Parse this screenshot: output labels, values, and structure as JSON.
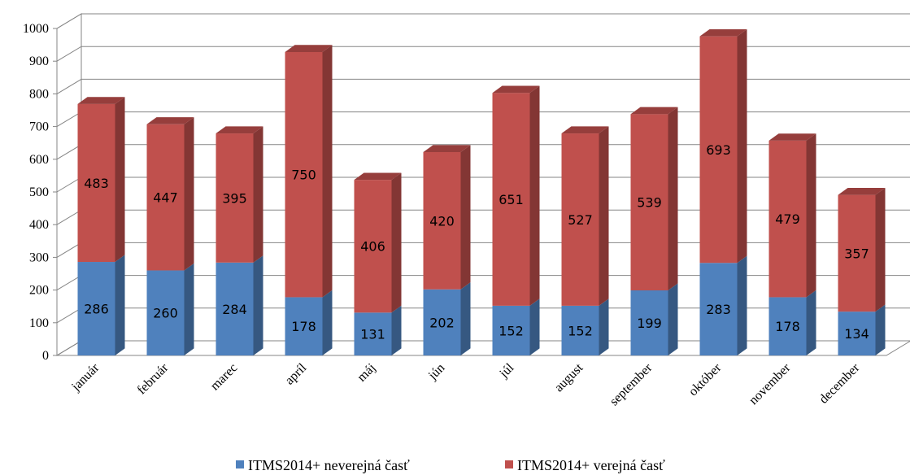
{
  "chart_data": {
    "type": "bar",
    "stacked": true,
    "categories": [
      "január",
      "február",
      "marec",
      "apríl",
      "máj",
      "jún",
      "júl",
      "august",
      "september",
      "október",
      "november",
      "december"
    ],
    "series": [
      {
        "name": "ITMS2014+ neverejná časť",
        "values": [
          286,
          260,
          284,
          178,
          131,
          202,
          152,
          152,
          199,
          283,
          178,
          134
        ],
        "color": "#4F81BD"
      },
      {
        "name": "ITMS2014+ verejná časť",
        "values": [
          483,
          447,
          395,
          750,
          406,
          420,
          651,
          527,
          539,
          693,
          479,
          357
        ],
        "color": "#C0504D"
      }
    ],
    "yticks": [
      "0",
      "100",
      "200",
      "300",
      "400",
      "500",
      "600",
      "700",
      "800",
      "900",
      "1000"
    ],
    "ylim": [
      0,
      1000
    ],
    "grid": true,
    "legend": "bottom",
    "style": "3d-column"
  }
}
